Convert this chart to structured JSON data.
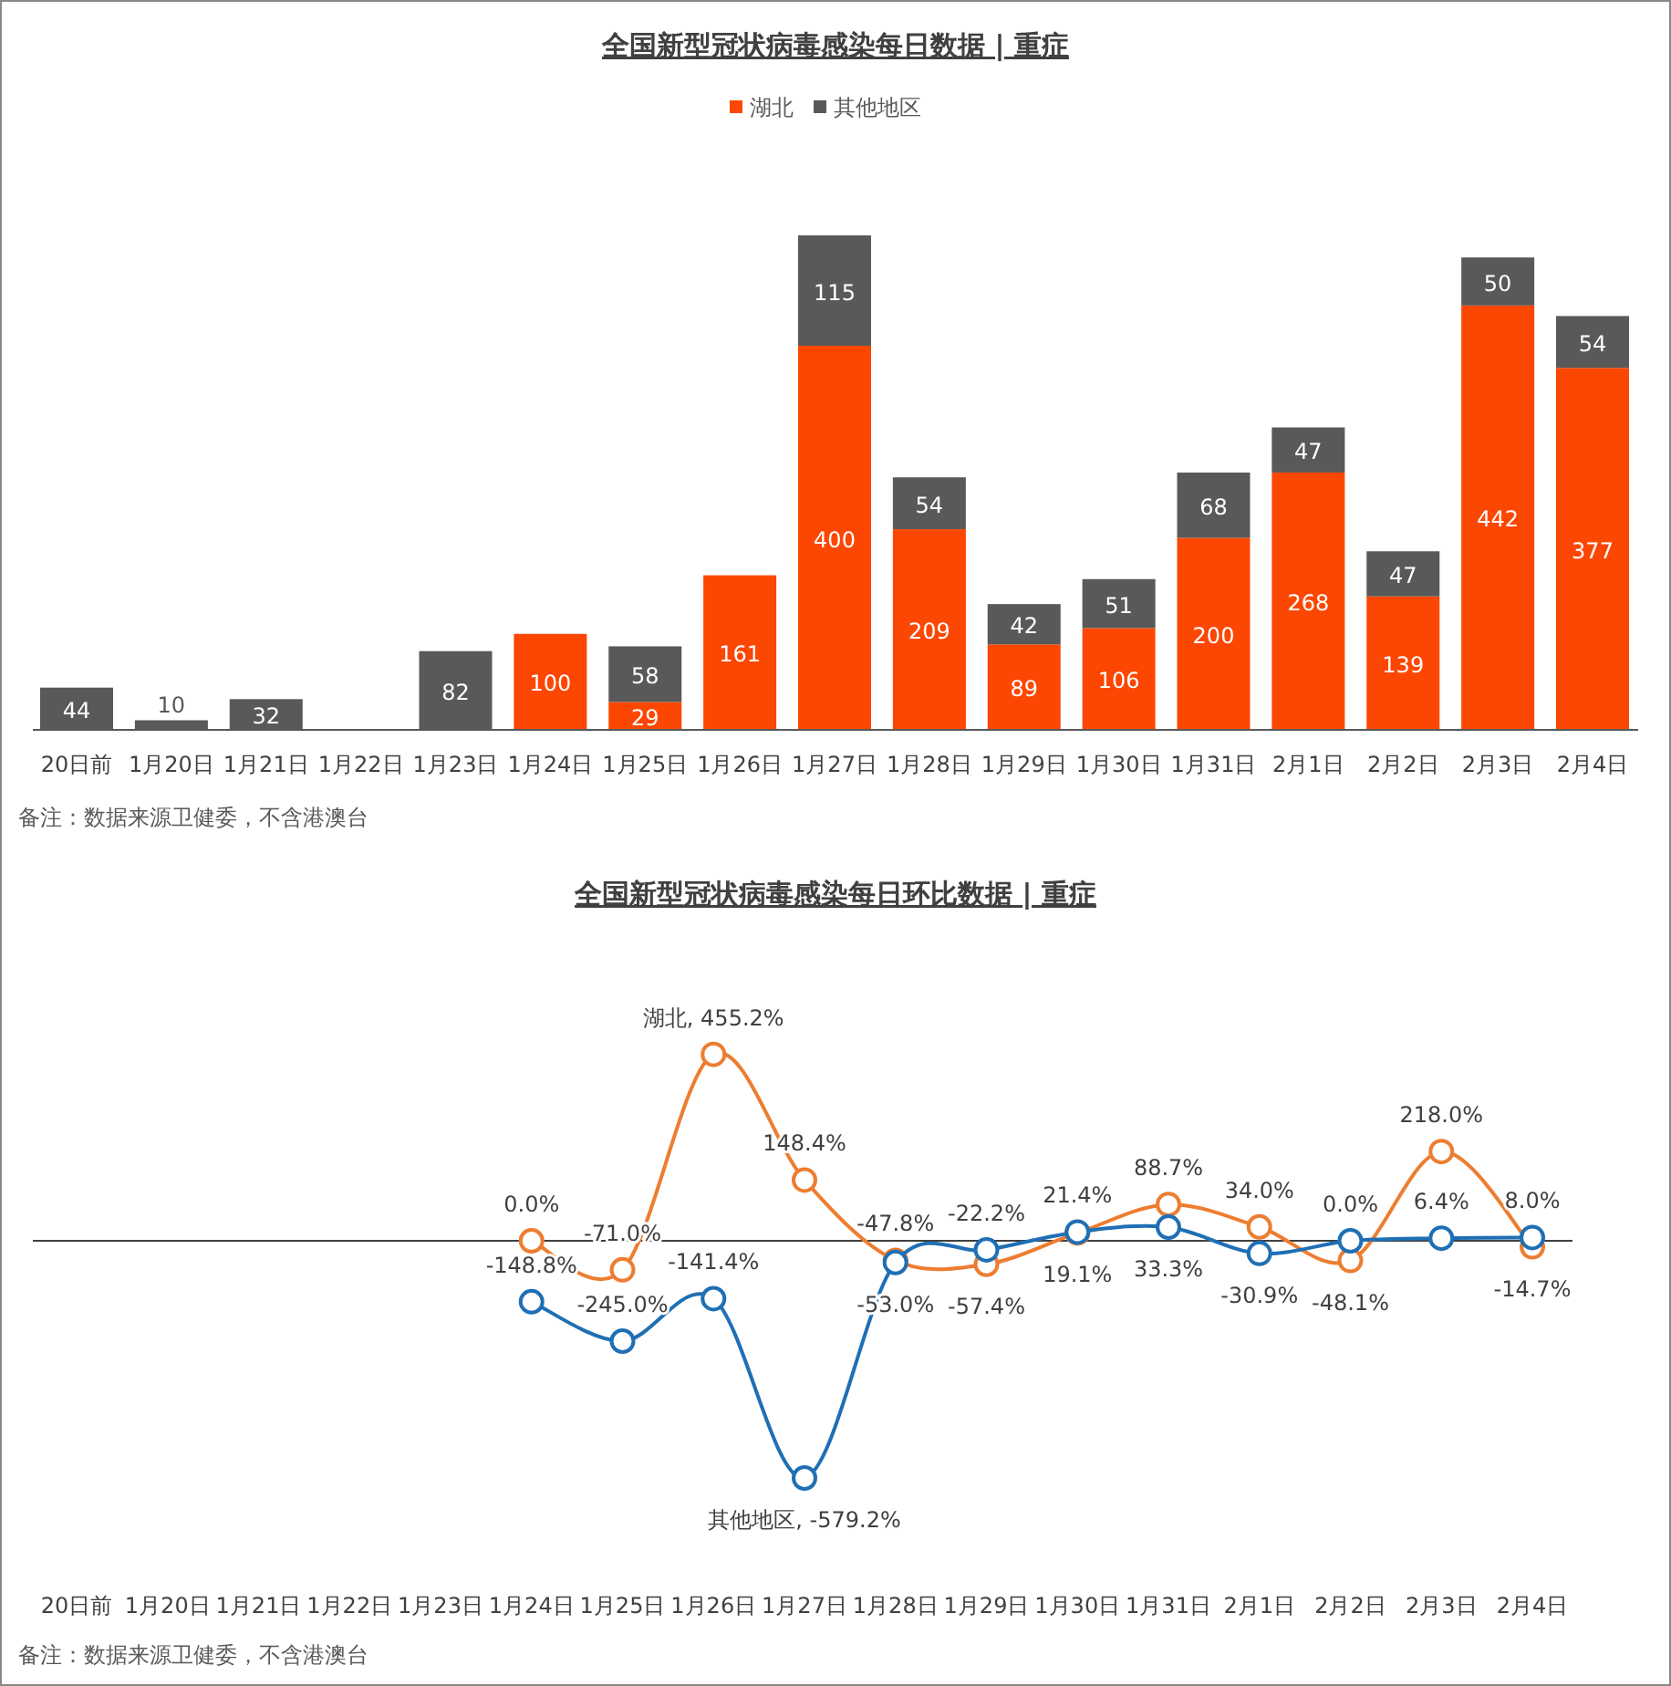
{
  "chart_data": [
    {
      "type": "bar",
      "title": "全国新型冠状病毒感染每日数据 | 重症",
      "stacked": true,
      "legend": "top",
      "annotations": [
        "备注：数据来源卫健委，不含港澳台"
      ],
      "categories": [
        "20日前",
        "1月20日",
        "1月21日",
        "1月22日",
        "1月23日",
        "1月24日",
        "1月25日",
        "1月26日",
        "1月27日",
        "1月28日",
        "1月29日",
        "1月30日",
        "1月31日",
        "2月1日",
        "2月2日",
        "2月3日",
        "2月4日"
      ],
      "series": [
        {
          "name": "湖北",
          "color": "#fc4703",
          "values": [
            0,
            0,
            0,
            0,
            0,
            100,
            29,
            161,
            400,
            209,
            89,
            106,
            200,
            268,
            139,
            442,
            377
          ],
          "value_labels": [
            null,
            null,
            null,
            null,
            null,
            "100",
            "29",
            "161",
            "400",
            "209",
            "89",
            "106",
            "200",
            "268",
            "139",
            "442",
            "377"
          ]
        },
        {
          "name": "其他地区",
          "color": "#595959",
          "values": [
            44,
            10,
            32,
            0,
            82,
            0,
            58,
            0,
            115,
            54,
            42,
            51,
            68,
            47,
            47,
            50,
            54
          ],
          "value_labels": [
            "44",
            "10",
            "32",
            null,
            "82",
            null,
            "58",
            null,
            "115",
            "54",
            "42",
            "51",
            "68",
            "47",
            "47",
            "50",
            "54"
          ]
        }
      ]
    },
    {
      "type": "line",
      "title": "全国新型冠状病毒感染每日环比数据 | 重症",
      "marker": "circle",
      "annotations": [
        "备注：数据来源卫健委，不含港澳台"
      ],
      "categories": [
        "20日前",
        "1月20日",
        "1月21日",
        "1月22日",
        "1月23日",
        "1月24日",
        "1月25日",
        "1月26日",
        "1月27日",
        "1月28日",
        "1月29日",
        "1月30日",
        "1月31日",
        "2月1日",
        "2月2日",
        "2月3日",
        "2月4日"
      ],
      "series": [
        {
          "color": "#ed7d31",
          "values": [
            null,
            null,
            null,
            null,
            null,
            0.0,
            -71.0,
            455.2,
            148.4,
            -47.8,
            -57.4,
            19.1,
            88.7,
            34.0,
            -48.1,
            218.0,
            -14.7
          ],
          "value_labels": [
            null,
            null,
            null,
            null,
            null,
            "0.0%",
            "-71.0%",
            "湖北, 455.2%",
            "148.4%",
            "-47.8%",
            "-57.4%",
            "19.1%",
            "88.7%",
            "34.0%",
            "-48.1%",
            "218.0%",
            "-14.7%"
          ]
        },
        {
          "color": "#1f6fb4",
          "values": [
            null,
            null,
            null,
            null,
            null,
            -148.8,
            -245.0,
            -141.4,
            -579.2,
            -53.0,
            -22.2,
            21.4,
            33.3,
            -30.9,
            0.0,
            6.4,
            8.0
          ],
          "value_labels": [
            null,
            null,
            null,
            null,
            null,
            "-148.8%",
            "-245.0%",
            "-141.4%",
            "其他地区, -579.2%",
            "-53.0%",
            "-22.2%",
            "21.4%",
            "33.3%",
            "-30.9%",
            "0.0%",
            "6.4%",
            "8.0%"
          ]
        }
      ]
    }
  ]
}
